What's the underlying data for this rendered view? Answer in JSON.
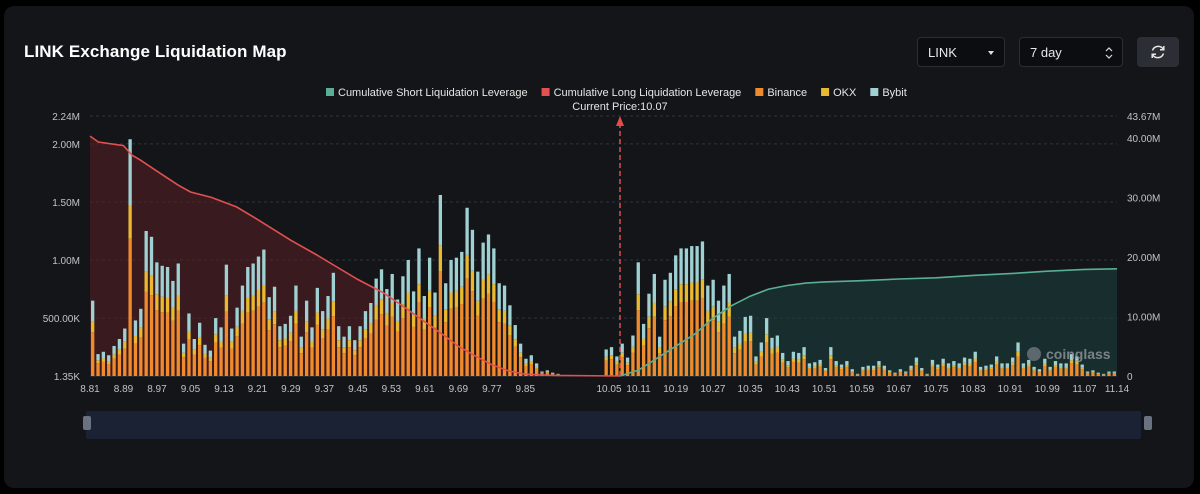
{
  "header": {
    "title": "LINK Exchange Liquidation Map",
    "coin_select": "LINK",
    "range_select": "7 day",
    "refresh_icon": "refresh-icon"
  },
  "colors": {
    "short_cum": "#5aae94",
    "long_cum": "#e25050",
    "binance": "#ef8b2c",
    "okx": "#e9b930",
    "bybit": "#9fd0d2",
    "current_price_line": "#e54b4b"
  },
  "chart_data": {
    "type": "bar",
    "title": "",
    "legend": {
      "position": "top-center",
      "items": [
        {
          "name": "Cumulative Short Liquidation Leverage",
          "color": "#5aae94"
        },
        {
          "name": "Cumulative Long Liquidation Leverage",
          "color": "#e25050"
        },
        {
          "name": "Binance",
          "color": "#ef8b2c"
        },
        {
          "name": "OKX",
          "color": "#e9b930"
        },
        {
          "name": "Bybit",
          "color": "#9fd0d2"
        }
      ]
    },
    "current_price": {
      "label": "Current Price:10.07",
      "value": 10.07
    },
    "watermark": "coinglass",
    "x_ticks": [
      "8.81",
      "8.89",
      "8.97",
      "9.05",
      "9.13",
      "9.21",
      "9.29",
      "9.37",
      "9.45",
      "9.53",
      "9.61",
      "9.69",
      "9.77",
      "9.85",
      "10.05",
      "10.11",
      "10.19",
      "10.27",
      "10.35",
      "10.43",
      "10.51",
      "10.59",
      "10.67",
      "10.75",
      "10.83",
      "10.91",
      "10.99",
      "11.07",
      "11.14"
    ],
    "y_left": {
      "ticks": [
        "1.35K",
        "500.00K",
        "1.00M",
        "1.50M",
        "2.00M",
        "2.24M"
      ],
      "values": [
        1350,
        500000,
        1000000,
        1500000,
        2000000,
        2240000
      ],
      "range": [
        1350,
        2240000
      ]
    },
    "y_right": {
      "ticks": [
        "0",
        "10.00M",
        "20.00M",
        "30.00M",
        "40.00M",
        "43.67M"
      ],
      "values": [
        0,
        10000000,
        20000000,
        30000000,
        40000000,
        43670000
      ],
      "range": [
        0,
        43670000
      ]
    },
    "grid": true,
    "bars_total": [
      650000,
      190000,
      210000,
      180000,
      260000,
      320000,
      410000,
      2040000,
      480000,
      580000,
      1250000,
      1200000,
      980000,
      950000,
      940000,
      820000,
      970000,
      280000,
      540000,
      320000,
      460000,
      270000,
      220000,
      500000,
      420000,
      960000,
      410000,
      590000,
      780000,
      940000,
      970000,
      1030000,
      1090000,
      680000,
      770000,
      430000,
      450000,
      520000,
      780000,
      340000,
      650000,
      420000,
      760000,
      560000,
      690000,
      890000,
      430000,
      340000,
      430000,
      310000,
      430000,
      560000,
      630000,
      840000,
      920000,
      750000,
      880000,
      660000,
      860000,
      1000000,
      730000,
      1100000,
      690000,
      1020000,
      720000,
      1560000,
      800000,
      1000000,
      1020000,
      1070000,
      1450000,
      1260000,
      900000,
      1150000,
      1220000,
      1100000,
      800000,
      780000,
      610000,
      440000,
      280000,
      150000,
      180000,
      110000,
      40000,
      50000,
      30000,
      20000,
      10000,
      0,
      0,
      0,
      0,
      0,
      0,
      0,
      230000,
      250000,
      170000,
      280000,
      160000,
      350000,
      980000,
      450000,
      710000,
      880000,
      340000,
      830000,
      890000,
      1040000,
      1100000,
      1100000,
      1120000,
      1120000,
      1160000,
      780000,
      830000,
      650000,
      780000,
      880000,
      340000,
      390000,
      510000,
      520000,
      170000,
      290000,
      500000,
      330000,
      350000,
      200000,
      130000,
      210000,
      200000,
      250000,
      110000,
      120000,
      140000,
      70000,
      250000,
      130000,
      100000,
      130000,
      60000,
      20000,
      80000,
      90000,
      90000,
      130000,
      90000,
      50000,
      30000,
      60000,
      40000,
      90000,
      160000,
      70000,
      20000,
      140000,
      100000,
      150000,
      110000,
      130000,
      110000,
      160000,
      150000,
      210000,
      80000,
      90000,
      100000,
      170000,
      110000,
      110000,
      160000,
      290000,
      110000,
      140000,
      80000,
      60000,
      150000,
      80000,
      130000,
      110000,
      110000,
      190000,
      170000,
      100000,
      40000,
      50000,
      30000,
      20000,
      40000,
      40000
    ],
    "series": [
      {
        "name": "Cumulative Long Liquidation Leverage",
        "axis": "right",
        "color": "#e25050",
        "x": [
          8.81,
          8.83,
          8.86,
          8.89,
          8.91,
          8.93,
          8.97,
          9.02,
          9.05,
          9.1,
          9.16,
          9.21,
          9.29,
          9.35,
          9.4,
          9.45,
          9.51,
          9.56,
          9.61,
          9.66,
          9.69,
          9.73,
          9.77,
          9.81,
          9.85,
          9.92,
          10.07
        ],
        "values": [
          40300000,
          39300000,
          39000000,
          38700000,
          37100000,
          36300000,
          34400000,
          32100000,
          30900000,
          30000000,
          28400000,
          26300000,
          22800000,
          20400000,
          18300000,
          16200000,
          14000000,
          11600000,
          9100000,
          6600000,
          5000000,
          3400000,
          1900000,
          850000,
          300000,
          100000,
          0
        ]
      },
      {
        "name": "Cumulative Short Liquidation Leverage",
        "axis": "right",
        "color": "#5aae94",
        "x": [
          10.07,
          10.11,
          10.15,
          10.19,
          10.23,
          10.27,
          10.31,
          10.35,
          10.39,
          10.43,
          10.47,
          10.51,
          10.59,
          10.67,
          10.75,
          10.83,
          10.91,
          10.99,
          11.07,
          11.14
        ],
        "values": [
          0,
          1000000,
          3000000,
          5000000,
          7000000,
          9700000,
          11800000,
          13400000,
          14600000,
          15200000,
          15600000,
          15800000,
          16000000,
          16300000,
          16500000,
          16900000,
          17200000,
          17600000,
          17900000,
          18000000
        ]
      }
    ]
  }
}
